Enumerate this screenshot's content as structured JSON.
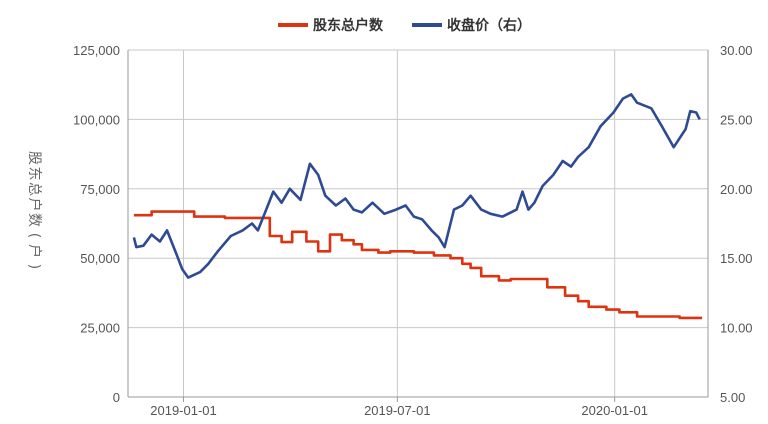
{
  "chart_data": {
    "type": "line",
    "title": "",
    "legend_position": "top-center",
    "grid": true,
    "xlabel": "",
    "ylabel": "股东总户数(户)",
    "y2label": "",
    "x_ticks": [
      "2019-01-01",
      "2019-07-01",
      "2020-01-01"
    ],
    "x_range": [
      "2018-11-15",
      "2020-03-20"
    ],
    "ylim": [
      0,
      125000
    ],
    "y_ticks": [
      "0",
      "25,000",
      "50,000",
      "75,000",
      "100,000",
      "125,000"
    ],
    "y2lim": [
      5.0,
      30.0
    ],
    "y2_ticks": [
      "5.00",
      "10.00",
      "15.00",
      "20.00",
      "25.00",
      "30.00"
    ],
    "series": [
      {
        "name": "股东总户数",
        "axis": "left",
        "color": "#dd3311",
        "step": true,
        "points": [
          [
            "2018-11-20",
            65500
          ],
          [
            "2018-12-05",
            66800
          ],
          [
            "2019-01-10",
            65000
          ],
          [
            "2019-02-05",
            64500
          ],
          [
            "2019-03-15",
            58000
          ],
          [
            "2019-03-25",
            55800
          ],
          [
            "2019-04-03",
            59500
          ],
          [
            "2019-04-15",
            56000
          ],
          [
            "2019-04-25",
            52500
          ],
          [
            "2019-05-05",
            58500
          ],
          [
            "2019-05-15",
            56500
          ],
          [
            "2019-05-25",
            55000
          ],
          [
            "2019-06-01",
            53000
          ],
          [
            "2019-06-15",
            52000
          ],
          [
            "2019-06-25",
            52500
          ],
          [
            "2019-07-15",
            52000
          ],
          [
            "2019-08-01",
            51000
          ],
          [
            "2019-08-15",
            50000
          ],
          [
            "2019-08-25",
            48000
          ],
          [
            "2019-09-01",
            46500
          ],
          [
            "2019-09-10",
            43500
          ],
          [
            "2019-09-25",
            42000
          ],
          [
            "2019-10-05",
            42500
          ],
          [
            "2019-11-05",
            39500
          ],
          [
            "2019-11-20",
            36500
          ],
          [
            "2019-12-01",
            34500
          ],
          [
            "2019-12-10",
            32500
          ],
          [
            "2019-12-25",
            31500
          ],
          [
            "2020-01-05",
            30500
          ],
          [
            "2020-01-20",
            29000
          ],
          [
            "2020-02-25",
            28500
          ],
          [
            "2020-03-15",
            28500
          ]
        ]
      },
      {
        "name": "收盘价（右）",
        "axis": "right",
        "color": "#2e4a93",
        "step": false,
        "points": [
          [
            "2018-11-20",
            16.5
          ],
          [
            "2018-11-22",
            15.8
          ],
          [
            "2018-11-28",
            15.9
          ],
          [
            "2018-12-05",
            16.7
          ],
          [
            "2018-12-12",
            16.2
          ],
          [
            "2018-12-18",
            17.0
          ],
          [
            "2018-12-26",
            15.3
          ],
          [
            "2018-12-31",
            14.2
          ],
          [
            "2019-01-05",
            13.6
          ],
          [
            "2019-01-15",
            14.0
          ],
          [
            "2019-01-22",
            14.6
          ],
          [
            "2019-01-30",
            15.5
          ],
          [
            "2019-02-10",
            16.6
          ],
          [
            "2019-02-20",
            17.0
          ],
          [
            "2019-02-28",
            17.5
          ],
          [
            "2019-03-05",
            17.0
          ],
          [
            "2019-03-12",
            18.5
          ],
          [
            "2019-03-18",
            19.8
          ],
          [
            "2019-03-25",
            19.0
          ],
          [
            "2019-04-01",
            20.0
          ],
          [
            "2019-04-10",
            19.2
          ],
          [
            "2019-04-18",
            21.8
          ],
          [
            "2019-04-25",
            21.0
          ],
          [
            "2019-05-01",
            19.5
          ],
          [
            "2019-05-10",
            18.8
          ],
          [
            "2019-05-18",
            19.3
          ],
          [
            "2019-05-25",
            18.5
          ],
          [
            "2019-06-01",
            18.3
          ],
          [
            "2019-06-10",
            19.0
          ],
          [
            "2019-06-20",
            18.2
          ],
          [
            "2019-06-30",
            18.5
          ],
          [
            "2019-07-08",
            18.8
          ],
          [
            "2019-07-15",
            18.0
          ],
          [
            "2019-07-22",
            17.8
          ],
          [
            "2019-07-30",
            17.0
          ],
          [
            "2019-08-05",
            16.5
          ],
          [
            "2019-08-10",
            15.8
          ],
          [
            "2019-08-18",
            18.5
          ],
          [
            "2019-08-25",
            18.8
          ],
          [
            "2019-09-01",
            19.5
          ],
          [
            "2019-09-10",
            18.5
          ],
          [
            "2019-09-18",
            18.2
          ],
          [
            "2019-09-28",
            18.0
          ],
          [
            "2019-10-10",
            18.5
          ],
          [
            "2019-10-15",
            19.8
          ],
          [
            "2019-10-20",
            18.5
          ],
          [
            "2019-10-25",
            19.0
          ],
          [
            "2019-11-01",
            20.2
          ],
          [
            "2019-11-10",
            21.0
          ],
          [
            "2019-11-18",
            22.0
          ],
          [
            "2019-11-25",
            21.6
          ],
          [
            "2019-12-01",
            22.3
          ],
          [
            "2019-12-10",
            23.0
          ],
          [
            "2019-12-20",
            24.5
          ],
          [
            "2019-12-31",
            25.5
          ],
          [
            "2020-01-08",
            26.5
          ],
          [
            "2020-01-15",
            26.8
          ],
          [
            "2020-01-20",
            26.2
          ],
          [
            "2020-02-01",
            25.8
          ],
          [
            "2020-02-10",
            24.5
          ],
          [
            "2020-02-20",
            23.0
          ],
          [
            "2020-03-01",
            24.3
          ],
          [
            "2020-03-05",
            25.6
          ],
          [
            "2020-03-10",
            25.5
          ],
          [
            "2020-03-13",
            25.0
          ]
        ]
      }
    ]
  }
}
